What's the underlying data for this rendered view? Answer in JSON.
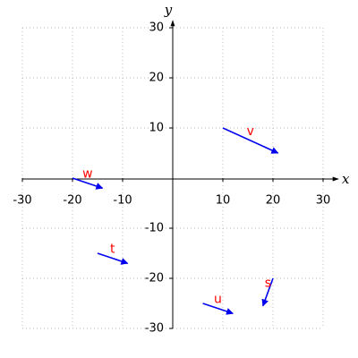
{
  "chart_data": {
    "type": "vector",
    "x_label": "x",
    "y_label": "y",
    "xlim": [
      -30,
      30
    ],
    "ylim": [
      -30,
      30
    ],
    "xticks": [
      -30,
      -20,
      -10,
      10,
      20,
      30
    ],
    "yticks": [
      -30,
      -20,
      -10,
      10,
      20,
      30
    ],
    "grid": true,
    "color": "#0000ee",
    "label_color": "#ff0000",
    "vectors": [
      {
        "name": "v",
        "x": 10,
        "y": 10,
        "dx": 11,
        "dy": -5
      },
      {
        "name": "w",
        "x": -20,
        "y": 0,
        "dx": 6,
        "dy": -2
      },
      {
        "name": "t",
        "x": -15,
        "y": -15,
        "dx": 6,
        "dy": -2
      },
      {
        "name": "u",
        "x": 6,
        "y": -25,
        "dx": 6,
        "dy": -2
      },
      {
        "name": "s",
        "x": 20,
        "y": -20,
        "dx": -2,
        "dy": -5.5
      }
    ]
  }
}
